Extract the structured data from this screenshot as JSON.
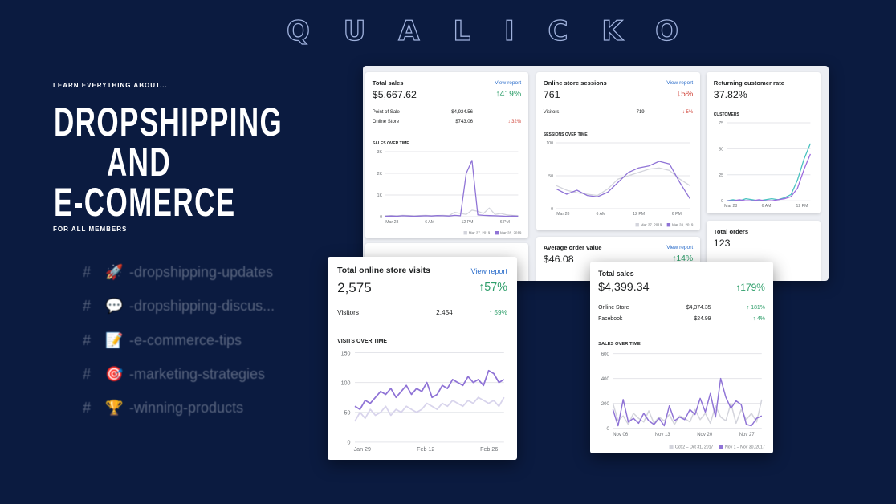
{
  "logo": "QUALICKO",
  "hero": {
    "kicker": "LEARN EVERYTHING ABOUT...",
    "lines": [
      "DROPSHIPPING",
      "AND",
      "E-COMERCE"
    ],
    "tagline": "FOR ALL MEMBERS"
  },
  "channels": [
    {
      "hash": "#",
      "emoji": "🚀",
      "name": "-dropshipping-updates"
    },
    {
      "hash": "#",
      "emoji": "💬",
      "name": "-dropshipping-discus..."
    },
    {
      "hash": "#",
      "emoji": "📝",
      "name": "-e-commerce-tips"
    },
    {
      "hash": "#",
      "emoji": "🎯",
      "name": "-marketing-strategies"
    },
    {
      "hash": "#",
      "emoji": "🏆",
      "name": "-winning-products"
    }
  ],
  "cards": [
    {
      "title": "Total sales",
      "link": "View report",
      "value": "$5,667.62",
      "change": "↑419%",
      "trend": "up",
      "rows": [
        [
          "Point of Sale",
          "$4,924.56",
          "—"
        ],
        [
          "Online Store",
          "$743.06",
          "↓ 32%"
        ]
      ],
      "chart": {
        "title": "SALES OVER TIME",
        "ylim": [
          0,
          3000
        ],
        "yticks": [
          0,
          {
            "value": 1000,
            "label": "1K"
          },
          {
            "value": 2000,
            "label": "2K"
          },
          {
            "value": 3000,
            "label": "3K"
          }
        ],
        "x_labels": [
          "Mar 28",
          "6 AM",
          "12 PM",
          "6 PM"
        ],
        "series": [
          {
            "name": "Mar 27, 2019",
            "color": "#d3d4dc",
            "values": [
              40,
              50,
              40,
              60,
              50,
              40,
              50,
              60,
              40,
              50,
              60,
              40,
              200,
              150,
              100,
              300,
              250,
              150,
              400,
              100,
              150,
              80,
              60,
              50
            ]
          },
          {
            "name": "Mar 28, 2019",
            "color": "#8f73d6",
            "values": [
              20,
              30,
              20,
              40,
              30,
              20,
              30,
              40,
              30,
              50,
              40,
              30,
              60,
              40,
              2000,
              2600,
              80,
              60,
              50,
              40,
              30,
              20,
              30,
              20
            ]
          }
        ]
      }
    },
    {
      "title": "Online store sessions",
      "link": "View report",
      "value": "761",
      "change": "↓5%",
      "trend": "down",
      "rows": [
        [
          "Visitors",
          "719",
          "↓ 5%"
        ]
      ],
      "chart": {
        "title": "SESSIONS OVER TIME",
        "ylim": [
          0,
          100
        ],
        "yticks": [
          0,
          50,
          100
        ],
        "x_labels": [
          "Mar 28",
          "6 AM",
          "12 PM",
          "6 PM"
        ],
        "series": [
          {
            "name": "Mar 27, 2019",
            "color": "#d3d4dc",
            "values": [
              35,
              28,
              24,
              22,
              20,
              30,
              45,
              50,
              55,
              60,
              62,
              58,
              45,
              35
            ]
          },
          {
            "name": "Mar 28, 2019",
            "color": "#8f73d6",
            "values": [
              30,
              22,
              28,
              20,
              18,
              25,
              40,
              55,
              62,
              65,
              72,
              68,
              40,
              15
            ]
          }
        ]
      }
    },
    {
      "title": "Returning customer rate",
      "value": "37.82%",
      "chart": {
        "title": "CUSTOMERS",
        "ylim": [
          0,
          75
        ],
        "yticks": [
          0,
          25,
          50,
          75
        ],
        "x_labels": [
          "Mar 28",
          "6 AM",
          "12 PM"
        ],
        "series": [
          {
            "color": "#47c1bf",
            "values": [
              0,
              1,
              0,
              2,
              1,
              0,
              1,
              2,
              1,
              3,
              6,
              20,
              40,
              55
            ]
          },
          {
            "color": "#9c6ade",
            "values": [
              0,
              0,
              1,
              0,
              0,
              1,
              0,
              0,
              1,
              2,
              4,
              12,
              30,
              45
            ]
          }
        ]
      }
    },
    {
      "title": "Average order value",
      "link": "View report",
      "value": "$46.08",
      "change": "↑14%",
      "trend": "up"
    },
    {
      "title": "Total orders",
      "value": "123"
    },
    {
      "title": "Total online store visits",
      "link": "View report",
      "value": "2,575",
      "change": "↑57%",
      "trend": "up",
      "rows": [
        [
          "Visitors",
          "2,454",
          "↑ 59%"
        ]
      ],
      "chart": {
        "title": "VISITS OVER TIME",
        "ylim": [
          0,
          150
        ],
        "yticks": [
          0,
          50,
          100,
          150
        ],
        "x_labels": [
          "Jan 29",
          "Feb 12",
          "Feb 26"
        ],
        "series": [
          {
            "color": "#d8d4ec",
            "values": [
              35,
              50,
              40,
              55,
              45,
              50,
              60,
              45,
              55,
              50,
              60,
              55,
              50,
              55,
              65,
              60,
              55,
              65,
              60,
              70,
              65,
              60,
              70,
              65,
              75,
              70,
              65,
              70,
              60,
              75
            ]
          },
          {
            "color": "#8f73d6",
            "values": [
              60,
              55,
              70,
              65,
              75,
              85,
              80,
              90,
              75,
              85,
              95,
              80,
              90,
              85,
              100,
              75,
              80,
              95,
              90,
              105,
              100,
              95,
              110,
              100,
              105,
              95,
              120,
              115,
              100,
              105
            ]
          }
        ]
      }
    },
    {
      "title": "Total sales",
      "value": "$4,399.34",
      "change": "↑179%",
      "trend": "up",
      "rows": [
        [
          "Online Store",
          "$4,374.35",
          "↑ 181%"
        ],
        [
          "Facebook",
          "$24.99",
          "↑ 4%"
        ]
      ],
      "chart": {
        "title": "SALES OVER TIME",
        "ylim": [
          0,
          600
        ],
        "yticks": [
          0,
          200,
          400,
          600
        ],
        "x_labels": [
          "Nov 06",
          "Nov 13",
          "Nov 20",
          "Nov 27"
        ],
        "series": [
          {
            "name": "Oct 2 – Oct 31, 2017",
            "color": "#d3d4dc",
            "values": [
              200,
              60,
              100,
              30,
              120,
              80,
              50,
              140,
              40,
              90,
              60,
              110,
              30,
              100,
              80,
              50,
              150,
              70,
              120,
              40,
              180,
              90,
              60,
              200,
              40,
              150,
              70,
              120,
              50,
              230
            ]
          },
          {
            "name": "Nov 1 – Nov 30, 2017",
            "color": "#8f73d6",
            "values": [
              150,
              20,
              230,
              50,
              80,
              40,
              120,
              60,
              30,
              80,
              20,
              180,
              60,
              90,
              70,
              150,
              110,
              240,
              130,
              280,
              90,
              400,
              250,
              160,
              220,
              190,
              30,
              20,
              80,
              100
            ]
          }
        ]
      }
    }
  ]
}
